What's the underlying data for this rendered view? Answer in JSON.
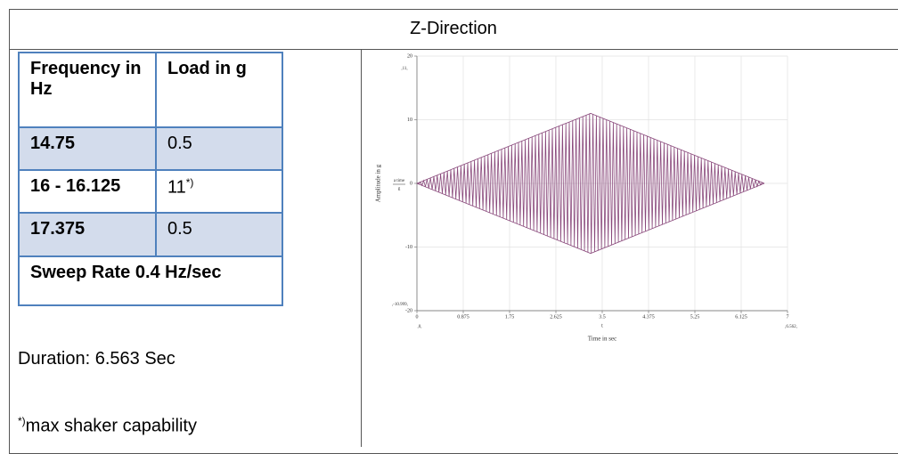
{
  "header": {
    "title": "Z-Direction"
  },
  "table": {
    "header": [
      "Frequency in Hz",
      "Load in g"
    ],
    "rows": [
      [
        "14.75",
        "0.5"
      ],
      [
        "16 - 16.125",
        "11"
      ],
      [
        "17.375",
        "0.5"
      ]
    ],
    "row_note": "*)",
    "footer": "Sweep Rate 0.4 Hz/sec"
  },
  "duration": "Duration: 6.563 Sec",
  "footnote": {
    "mark": "*)",
    "text": "max shaker capability"
  },
  "chart_data": {
    "type": "line",
    "xlabel": "Time in sec",
    "ylabel": "Amplitude in g",
    "x_symbol": "t",
    "legend": {
      "numerator": "a time",
      "denominator": "g"
    },
    "annotations": [
      ",11,",
      ",-10.999,",
      ",0,",
      ",6.562,"
    ],
    "x": [
      0,
      3.281,
      6.562
    ],
    "series": [
      {
        "color": "#8a4a7c",
        "values": [
          0,
          11,
          0
        ]
      },
      {
        "color": "#8a4a7c",
        "values": [
          0,
          -10.999,
          0
        ]
      }
    ],
    "xlim": [
      0,
      7
    ],
    "xticks": [
      0,
      0.875,
      1.75,
      2.625,
      3.5,
      4.375,
      5.25,
      6.125,
      7
    ],
    "ylim": [
      -20,
      20
    ],
    "yticks": [
      -20,
      -10,
      0,
      10,
      20
    ],
    "grid": true
  }
}
